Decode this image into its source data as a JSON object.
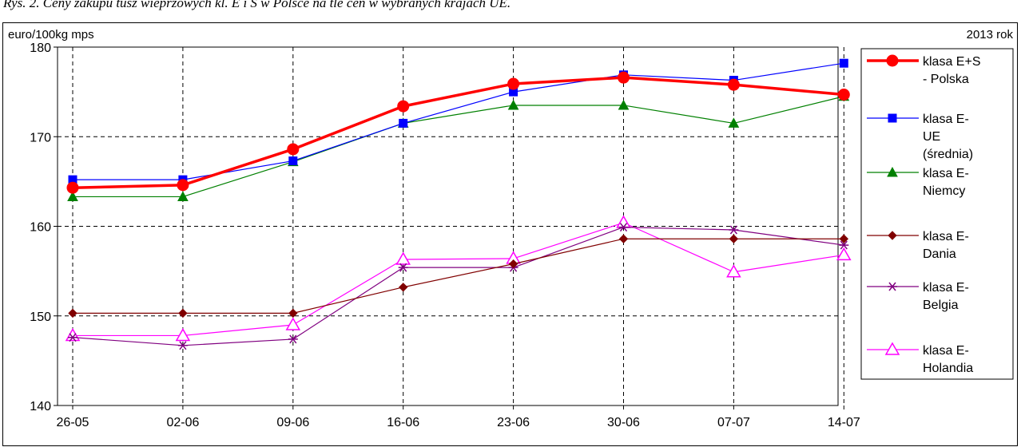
{
  "caption": "Rys. 2. Ceny zakupu tusz wieprzowych kl. E i S w Polsce na tle cen w wybranych krajach UE.",
  "chart_data": {
    "type": "line",
    "ylabel": "euro/100kg mps",
    "note": "2013 rok",
    "ylim": [
      140,
      180
    ],
    "yticks": [
      140,
      150,
      160,
      170,
      180
    ],
    "categories": [
      "26-05",
      "02-06",
      "09-06",
      "16-06",
      "23-06",
      "30-06",
      "07-07",
      "14-07"
    ],
    "grid": true,
    "legend_position": "right",
    "series": [
      {
        "name_lines": [
          "klasa E+S",
          "- Polska"
        ],
        "color": "#ff0000",
        "marker": "circle",
        "width": 3.5,
        "values": [
          164.3,
          164.6,
          168.6,
          173.4,
          175.9,
          176.6,
          175.8,
          174.7
        ]
      },
      {
        "name_lines": [
          "klasa E-",
          "UE",
          "(średnia)"
        ],
        "color": "#0000ff",
        "marker": "square",
        "width": 1.2,
        "values": [
          165.2,
          165.2,
          167.3,
          171.5,
          175.0,
          176.9,
          176.3,
          178.2
        ]
      },
      {
        "name_lines": [
          "klasa E-",
          "Niemcy"
        ],
        "color": "#008000",
        "marker": "triangle",
        "width": 1.2,
        "values": [
          163.3,
          163.3,
          167.2,
          171.5,
          173.5,
          173.5,
          171.5,
          174.5
        ]
      },
      {
        "name_lines": [
          "klasa E-",
          "Dania"
        ],
        "color": "#800000",
        "marker": "diamond",
        "width": 1.2,
        "values": [
          150.3,
          150.3,
          150.3,
          153.2,
          155.8,
          158.6,
          158.6,
          158.6
        ]
      },
      {
        "name_lines": [
          "klasa E-",
          "Belgia"
        ],
        "color": "#800080",
        "marker": "star",
        "width": 1.2,
        "values": [
          147.6,
          146.7,
          147.4,
          155.4,
          155.4,
          159.9,
          159.6,
          157.9
        ]
      },
      {
        "name_lines": [
          "klasa E-",
          "Holandia"
        ],
        "color": "#ff00ff",
        "marker": "open-triangle",
        "width": 1.2,
        "values": [
          147.8,
          147.8,
          149.0,
          156.3,
          156.4,
          160.4,
          154.9,
          156.8
        ]
      }
    ]
  }
}
